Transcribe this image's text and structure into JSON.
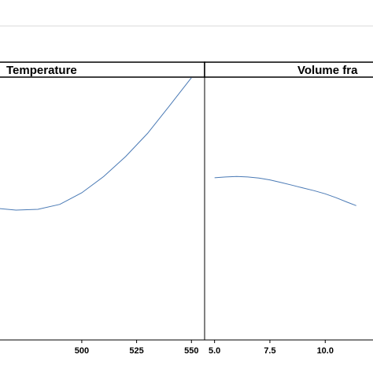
{
  "chart_data": [
    {
      "type": "line",
      "strip_title": "Temperature",
      "xlim": [
        462,
        556
      ],
      "xticks": [
        "500",
        "525",
        "550"
      ],
      "ylim": [
        0,
        1
      ],
      "grid": false,
      "color": "#4a7ab5",
      "series": [
        {
          "x": [
            462,
            470,
            480,
            490,
            500,
            510,
            520,
            530,
            540,
            550
          ],
          "y": [
            0.5,
            0.494,
            0.497,
            0.516,
            0.56,
            0.622,
            0.698,
            0.786,
            0.891,
            0.998
          ]
        }
      ]
    },
    {
      "type": "line",
      "strip_title": "Volume fra",
      "xlim": [
        4.55,
        12.23
      ],
      "xticks": [
        "5.0",
        "7.5",
        "10.0"
      ],
      "ylim": [
        0,
        1
      ],
      "grid": false,
      "color": "#4a7ab5",
      "series": [
        {
          "x": [
            5.0,
            5.5,
            6.0,
            6.5,
            7.0,
            7.5,
            8.0,
            8.5,
            9.0,
            9.5,
            10.0,
            10.5,
            11.0,
            11.4
          ],
          "y": [
            0.617,
            0.62,
            0.622,
            0.62,
            0.616,
            0.609,
            0.599,
            0.589,
            0.578,
            0.568,
            0.556,
            0.541,
            0.524,
            0.511
          ]
        }
      ]
    }
  ]
}
